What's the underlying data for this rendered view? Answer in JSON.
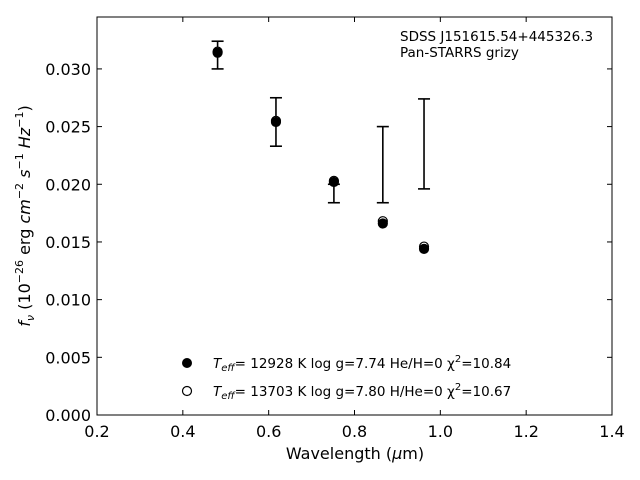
{
  "chart_data": {
    "type": "scatter",
    "title": "",
    "xlabel": "Wavelength (μm)",
    "ylabel": "fν (10⁻²⁶ erg cm⁻² s⁻¹ Hz⁻¹)",
    "xlim": [
      0.2,
      1.4
    ],
    "ylim": [
      0.0,
      0.0345
    ],
    "xticks": [
      "0.2",
      "0.4",
      "0.6",
      "0.8",
      "1.0",
      "1.2",
      "1.4"
    ],
    "yticks": [
      "0.000",
      "0.005",
      "0.010",
      "0.015",
      "0.020",
      "0.025",
      "0.030"
    ],
    "annotations": [
      "SDSS J151615.54+445326.3",
      "Pan-STARRS grizy"
    ],
    "observed": [
      {
        "x": 0.481,
        "y": 0.0312,
        "err": 0.0012
      },
      {
        "x": 0.617,
        "y": 0.0254,
        "err": 0.0021
      },
      {
        "x": 0.752,
        "y": 0.0192,
        "err": 0.0008
      },
      {
        "x": 0.866,
        "y": 0.0217,
        "err": 0.0033
      },
      {
        "x": 0.962,
        "y": 0.0235,
        "err": 0.0039
      }
    ],
    "series": [
      {
        "label": {
          "teff": "T",
          "teff_sub": "eff",
          "rest": "= 12928 K  log g=7.74  He/H=0  χ",
          "sup": "2",
          "end": "=10.84"
        },
        "marker": "filled",
        "x": [
          0.481,
          0.617,
          0.752,
          0.866,
          0.962
        ],
        "y": [
          0.0314,
          0.0254,
          0.0202,
          0.0166,
          0.0144
        ]
      },
      {
        "label": {
          "teff": "T",
          "teff_sub": "eff",
          "rest": "= 13703 K  log g=7.80  H/He=0  χ",
          "sup": "2",
          "end": "=10.67"
        },
        "marker": "open",
        "x": [
          0.481,
          0.617,
          0.752,
          0.866,
          0.962
        ],
        "y": [
          0.0315,
          0.0255,
          0.0203,
          0.0168,
          0.0146
        ]
      }
    ],
    "legend_position": "lower-center"
  }
}
